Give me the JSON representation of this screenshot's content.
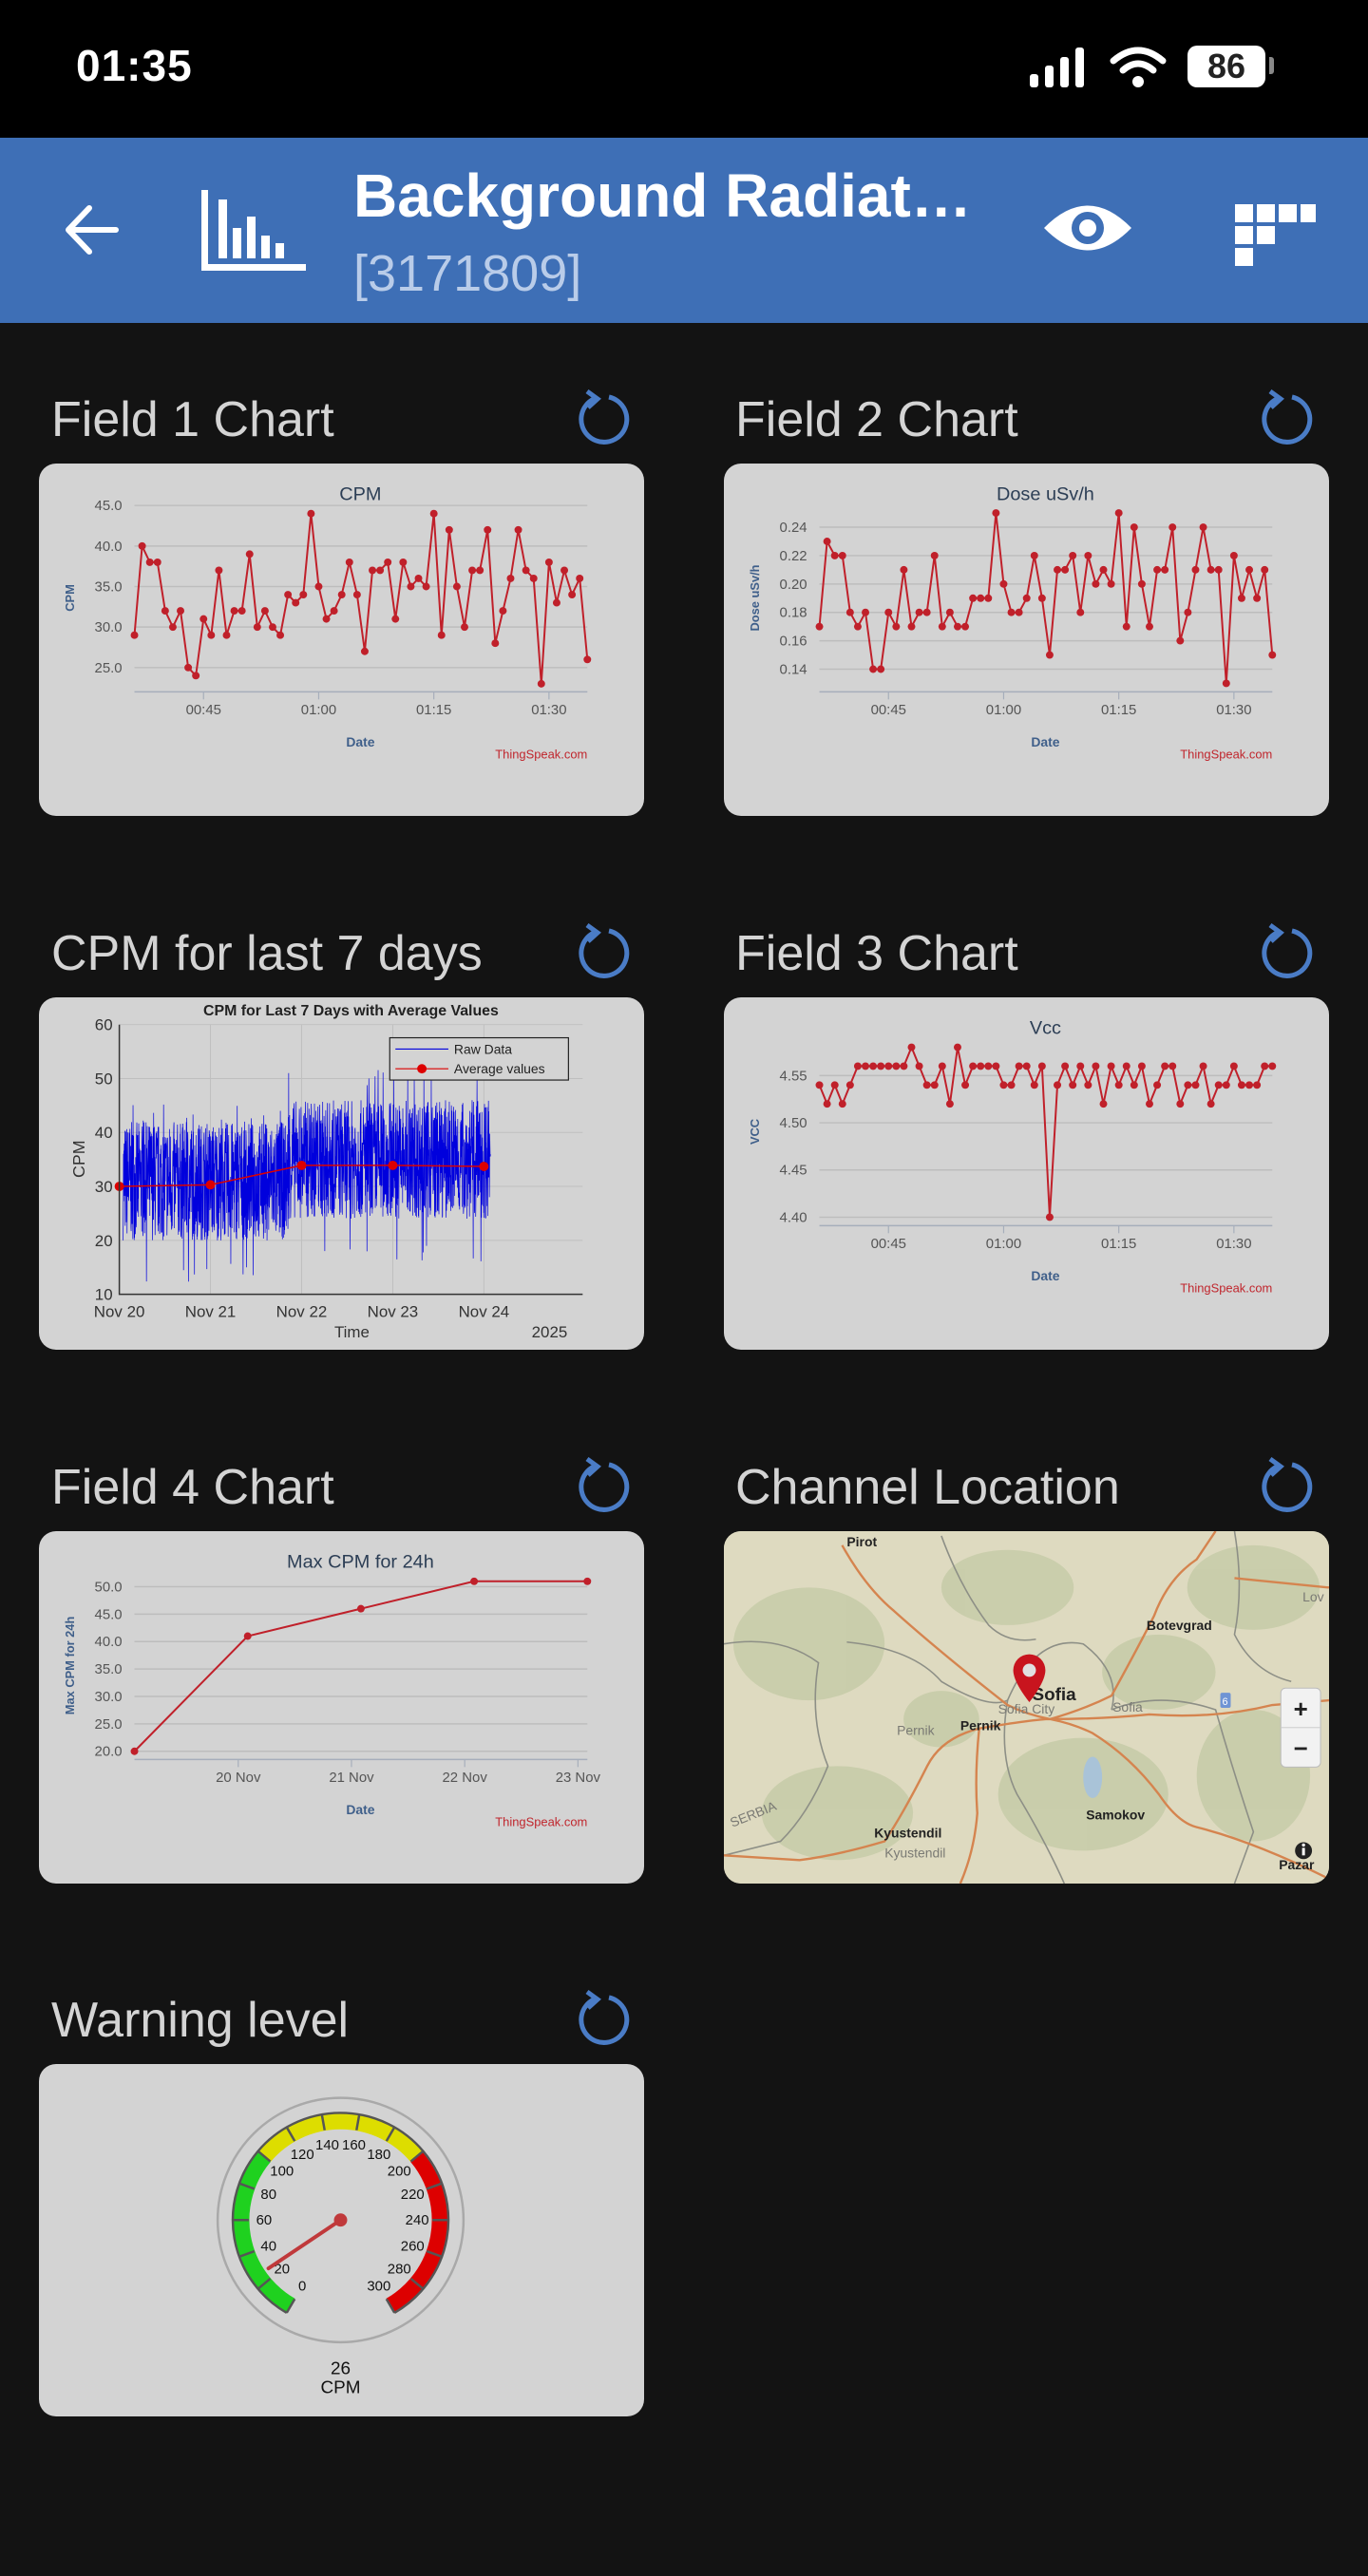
{
  "status_bar": {
    "time": "01:35",
    "battery": "86",
    "icons": [
      "signal-icon",
      "wifi-icon",
      "battery-icon"
    ]
  },
  "header": {
    "title": "Background Radiat…",
    "channel_id": "[3171809]",
    "background": "#3e6fb6",
    "icons": [
      "back-arrow-icon",
      "channel-chart-icon",
      "eye-icon",
      "qr-grid-icon"
    ]
  },
  "widgets": [
    {
      "title": "Field 1 Chart"
    },
    {
      "title": "Field 2 Chart"
    },
    {
      "title": "CPM for last 7 days"
    },
    {
      "title": "Field 3 Chart"
    },
    {
      "title": "Field 4 Chart"
    },
    {
      "title": "Channel Location"
    },
    {
      "title": "Warning level"
    }
  ],
  "chart_data": [
    {
      "type": "line",
      "title": "CPM",
      "xlabel": "Date",
      "ylabel": "CPM",
      "credit": "ThingSpeak.com",
      "x_start": "00:36",
      "x_step_minutes": 1,
      "xticks": [
        "00:45",
        "01:00",
        "01:15",
        "01:30"
      ],
      "yticks": [
        "25.0",
        "30.0",
        "35.0",
        "40.0",
        "45.0"
      ],
      "ylim": [
        22,
        46.7
      ],
      "grid": true,
      "color": "#c0202a",
      "values": [
        29,
        40,
        38,
        38,
        32,
        30,
        32,
        25,
        24,
        31,
        29,
        37,
        29,
        32,
        32,
        39,
        30,
        32,
        30,
        29,
        34,
        33,
        34,
        44,
        35,
        31,
        32,
        34,
        38,
        34,
        27,
        37,
        37,
        38,
        31,
        38,
        35,
        36,
        35,
        44,
        29,
        42,
        35,
        30,
        37,
        37,
        42,
        28,
        32,
        36,
        42,
        37,
        36,
        23,
        38,
        33,
        37,
        34,
        36,
        26
      ]
    },
    {
      "type": "line",
      "title": "Dose uSv/h",
      "xlabel": "Date",
      "ylabel": "Dose uSv/h",
      "credit": "ThingSpeak.com",
      "x_start": "00:36",
      "x_step_minutes": 1,
      "xticks": [
        "00:45",
        "01:00",
        "01:15",
        "01:30"
      ],
      "yticks": [
        "0.14",
        "0.16",
        "0.18",
        "0.20",
        "0.22",
        "0.24"
      ],
      "ylim": [
        0.124,
        0.265
      ],
      "grid": true,
      "color": "#c0202a",
      "values": [
        0.17,
        0.23,
        0.22,
        0.22,
        0.18,
        0.17,
        0.18,
        0.14,
        0.14,
        0.18,
        0.17,
        0.21,
        0.17,
        0.18,
        0.18,
        0.22,
        0.17,
        0.18,
        0.17,
        0.17,
        0.19,
        0.19,
        0.19,
        0.25,
        0.2,
        0.18,
        0.18,
        0.19,
        0.22,
        0.19,
        0.15,
        0.21,
        0.21,
        0.22,
        0.18,
        0.22,
        0.2,
        0.21,
        0.2,
        0.25,
        0.17,
        0.24,
        0.2,
        0.17,
        0.21,
        0.21,
        0.24,
        0.16,
        0.18,
        0.21,
        0.24,
        0.21,
        0.21,
        0.13,
        0.22,
        0.19,
        0.21,
        0.19,
        0.21,
        0.15
      ]
    },
    {
      "type": "line",
      "title": "CPM for Last 7 Days with Average Values",
      "xlabel": "Time",
      "ylabel": "CPM",
      "xticks": [
        {
          "label": "Nov 20",
          "date": "2025-11-20T00:00"
        },
        {
          "label": "Nov 21",
          "date": "2025-11-21T00:00"
        },
        {
          "label": "Nov 22",
          "date": "2025-11-22T00:00"
        },
        {
          "label": "Nov 23",
          "date": "2025-11-23T00:00"
        },
        {
          "label": "Nov 24",
          "date": "2025-11-24T00:00"
        }
      ],
      "year_label": "2025",
      "xlim": [
        "2025-11-20T00:00",
        "2025-11-25T02:00"
      ],
      "yticks": [
        10,
        20,
        30,
        40,
        50,
        60
      ],
      "ylim": [
        10,
        60
      ],
      "grid": true,
      "legend": {
        "position": "top-right",
        "entries": [
          "Raw Data",
          "Average values"
        ]
      },
      "series": [
        {
          "name": "Raw Data",
          "color": "#0000dd",
          "segments": [
            {
              "start": "2025-11-20T01:00",
              "end": "2025-11-21T20:30",
              "typical_min": 20,
              "typical_max": 42,
              "min": 12,
              "max": 46
            },
            {
              "start": "2025-11-21T20:30",
              "end": "2025-11-24T01:45",
              "typical_min": 24,
              "typical_max": 46,
              "min": 16,
              "max": 52
            }
          ]
        },
        {
          "name": "Average values",
          "color": "#dd0000",
          "x": [
            "2025-11-20T00:00",
            "2025-11-21T00:00",
            "2025-11-22T00:00",
            "2025-11-23T00:00",
            "2025-11-24T00:00"
          ],
          "values": [
            30.0,
            30.3,
            33.9,
            33.9,
            33.7
          ]
        }
      ]
    },
    {
      "type": "line",
      "title": "Vcc",
      "xlabel": "Date",
      "ylabel": "VCC",
      "credit": "ThingSpeak.com",
      "x_start": "00:36",
      "x_step_minutes": 1,
      "xticks": [
        "00:45",
        "01:00",
        "01:15",
        "01:30"
      ],
      "yticks": [
        "4.40",
        "4.45",
        "4.50",
        "4.55"
      ],
      "ylim": [
        4.391,
        4.603
      ],
      "grid": true,
      "color": "#c0202a",
      "values": [
        4.54,
        4.52,
        4.54,
        4.52,
        4.54,
        4.56,
        4.56,
        4.56,
        4.56,
        4.56,
        4.56,
        4.56,
        4.58,
        4.56,
        4.54,
        4.54,
        4.56,
        4.52,
        4.58,
        4.54,
        4.56,
        4.56,
        4.56,
        4.56,
        4.54,
        4.54,
        4.56,
        4.56,
        4.54,
        4.56,
        4.4,
        4.54,
        4.56,
        4.54,
        4.56,
        4.54,
        4.56,
        4.52,
        4.56,
        4.54,
        4.56,
        4.54,
        4.56,
        4.52,
        4.54,
        4.56,
        4.56,
        4.52,
        4.54,
        4.54,
        4.56,
        4.52,
        4.54,
        4.54,
        4.56,
        4.54,
        4.54,
        4.54,
        4.56,
        4.56
      ]
    },
    {
      "type": "line",
      "title": "Max CPM for 24h",
      "xlabel": "Date",
      "ylabel": "Max CPM for 24h",
      "credit": "ThingSpeak.com",
      "x": [
        "2025-11-19T02:00",
        "2025-11-20T02:00",
        "2025-11-21T02:00",
        "2025-11-22T02:00",
        "2025-11-23T02:00"
      ],
      "xticks": [
        {
          "label": "20 Nov",
          "date": "2025-11-20T00:00"
        },
        {
          "label": "21 Nov",
          "date": "2025-11-21T00:00"
        },
        {
          "label": "22 Nov",
          "date": "2025-11-22T00:00"
        },
        {
          "label": "23 Nov",
          "date": "2025-11-23T00:00"
        }
      ],
      "yticks": [
        "20.0",
        "25.0",
        "30.0",
        "35.0",
        "40.0",
        "45.0",
        "50.0"
      ],
      "ylim": [
        18.5,
        55
      ],
      "grid": true,
      "color": "#c0202a",
      "values": [
        20,
        41,
        46,
        51,
        51
      ]
    }
  ],
  "map": {
    "labels": {
      "pirot": "Pirot",
      "botevgrad": "Botevgrad",
      "sofia": "Sofia",
      "sofia_city": "Sofia City",
      "sofia_region": "Sofia",
      "pernik": "Pernik",
      "pernik_region": "Pernik",
      "samokov": "Samokov",
      "kyustendil": "Kyustendil",
      "kyustendil_region": "Kyustendil",
      "serbia": "SERBIA",
      "lov": "Lov",
      "pazar": "Pazar",
      "road": "6"
    },
    "zoom_in": "+",
    "zoom_out": "−",
    "marker_color": "#c8141e"
  },
  "gauge": {
    "value": 26,
    "unit": "CPM",
    "min": 0,
    "max": 300,
    "ticks": [
      0,
      20,
      40,
      60,
      80,
      100,
      120,
      140,
      160,
      180,
      200,
      220,
      240,
      260,
      280,
      300
    ],
    "bands": [
      {
        "from": 0,
        "to": 100,
        "color": "#1fd11f"
      },
      {
        "from": 100,
        "to": 200,
        "color": "#dddd00"
      },
      {
        "from": 200,
        "to": 300,
        "color": "#dd0000"
      }
    ]
  }
}
